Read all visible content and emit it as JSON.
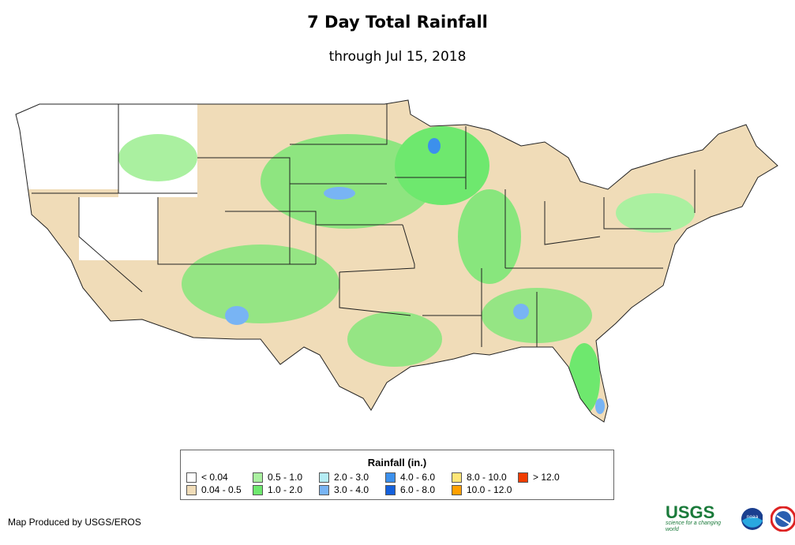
{
  "title": "7 Day Total Rainfall",
  "subtitle": "through Jul 15, 2018",
  "legend": {
    "title": "Rainfall (in.)",
    "items": [
      {
        "label": "< 0.04",
        "color": "#ffffff"
      },
      {
        "label": "0.04 - 0.5",
        "color": "#f0dcb8"
      },
      {
        "label": "0.5 - 1.0",
        "color": "#aaf0a0"
      },
      {
        "label": "1.0 - 2.0",
        "color": "#6ee86e"
      },
      {
        "label": "2.0 - 3.0",
        "color": "#b4ecf4"
      },
      {
        "label": "3.0 - 4.0",
        "color": "#78b4f4"
      },
      {
        "label": "4.0 - 6.0",
        "color": "#3c90ec"
      },
      {
        "label": "6.0 - 8.0",
        "color": "#1460dc"
      },
      {
        "label": "8.0 - 10.0",
        "color": "#ffe678"
      },
      {
        "label": "10.0 - 12.0",
        "color": "#ffa000"
      },
      {
        "label": "> 12.0",
        "color": "#f03c00"
      }
    ]
  },
  "credit": "Map Produced by USGS/EROS",
  "logos": {
    "usgs": "USGS",
    "usgs_tagline": "science for a changing world",
    "noaa": "noaa"
  }
}
